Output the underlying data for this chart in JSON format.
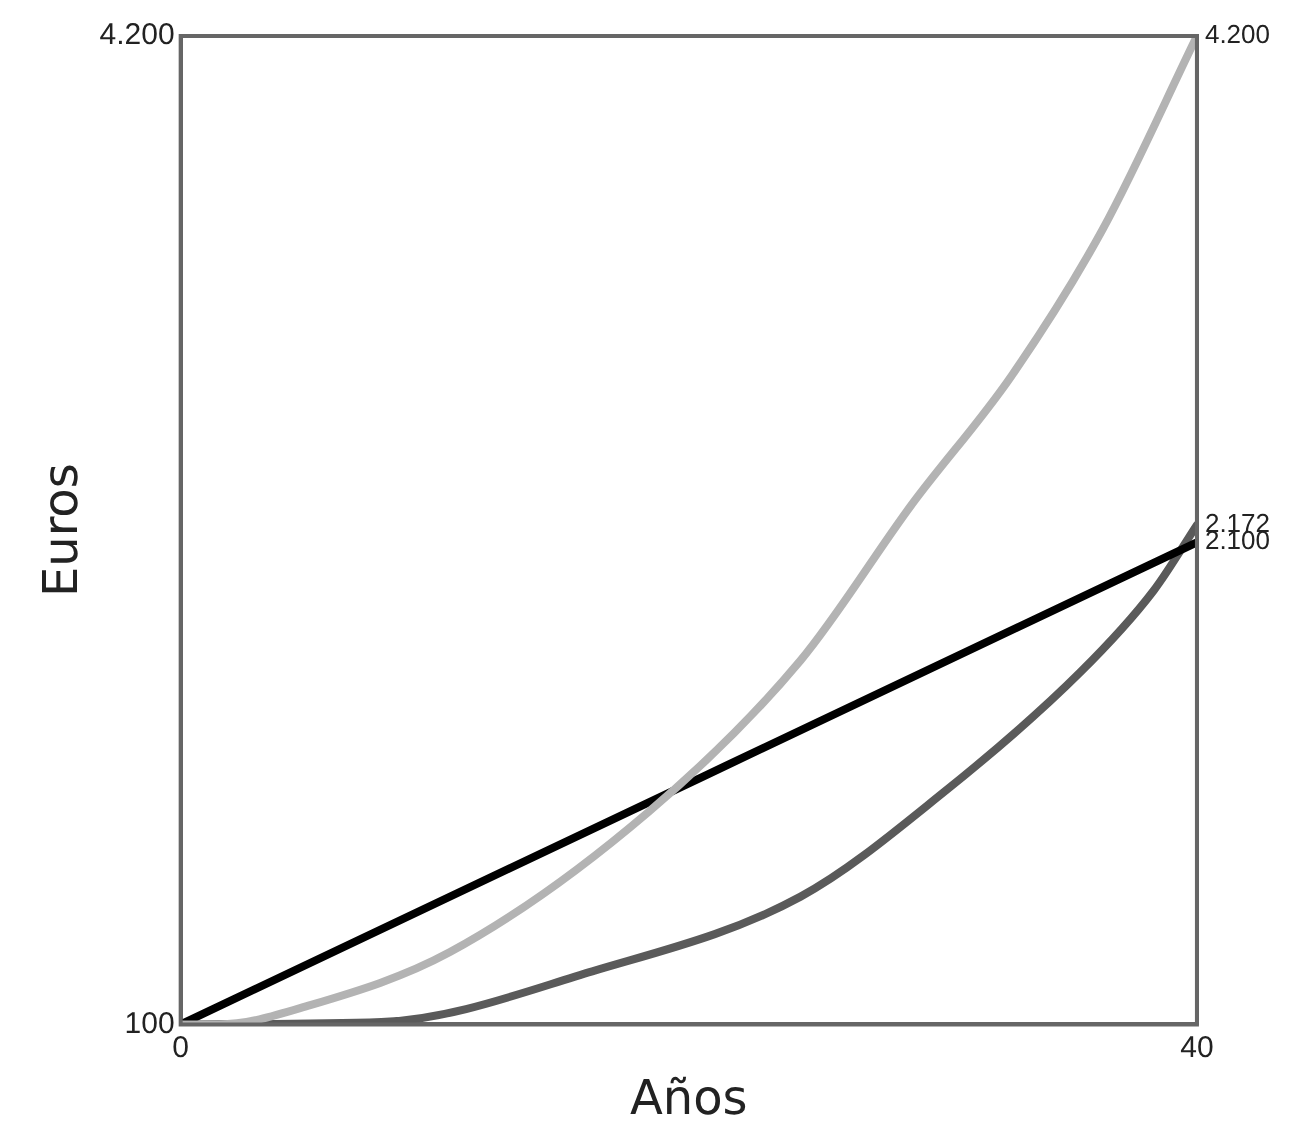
{
  "chart_data": {
    "type": "line",
    "xlabel": "Años",
    "ylabel": "Euros",
    "xlim": [
      0,
      40
    ],
    "xticks": [
      0,
      40
    ],
    "ylim": [
      100,
      4200
    ],
    "yticks": [
      100,
      {
        "value": 4200,
        "label": "4.200"
      }
    ],
    "y2lim": [
      100,
      4200
    ],
    "y2ticks": [
      {
        "value": 2100,
        "label": "2.100"
      },
      {
        "value": 2172,
        "label": "2.172"
      },
      {
        "value": 4200,
        "label": "4.200"
      }
    ],
    "marker": "none",
    "line_style": "solid",
    "series": [
      {
        "color": "#b3b3b3",
        "x": [
          0,
          1.5,
          5.1,
          10.6,
          18.4,
          24.4,
          28.8,
          32.7,
          36.3,
          40
        ],
        "values": [
          100,
          100,
          180,
          400,
          980,
          1610,
          2260,
          2790,
          3400,
          4200
        ]
      },
      {
        "color": "#000000",
        "x": [
          0,
          40
        ],
        "values": [
          100,
          2100
        ]
      },
      {
        "color": "#5a5a5a",
        "x": [
          0,
          7.9,
          16.2,
          24.4,
          30,
          35.4,
          38.3,
          40
        ],
        "values": [
          100,
          110,
          320,
          630,
          1060,
          1560,
          1900,
          2172
        ]
      }
    ]
  }
}
